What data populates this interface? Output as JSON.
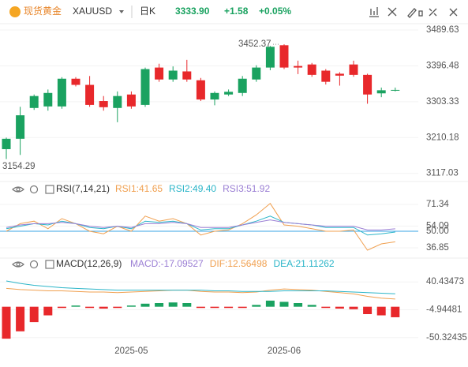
{
  "header": {
    "name": "现货黄金",
    "symbol": "XAUUSD",
    "period": "日K",
    "price": "3333.90",
    "change": "+1.58",
    "change_pct": "+0.05%"
  },
  "chart_data": [
    {
      "type": "candlestick",
      "up_color": "#1aa260",
      "down_color": "#e8282b",
      "categories": [
        null,
        null,
        null,
        null,
        null,
        null,
        null,
        null,
        null,
        "2025-05",
        null,
        null,
        null,
        null,
        null,
        null,
        null,
        null,
        null,
        null,
        "2025-06",
        null,
        null,
        null,
        null,
        null,
        null,
        null,
        null
      ],
      "open": [
        3180,
        3207,
        3287,
        3291,
        3291,
        3363,
        3347,
        3305,
        3287,
        3322,
        3295,
        3392,
        3361,
        3382,
        3359,
        3309,
        3322,
        3326,
        3361,
        3392,
        3450,
        3396,
        3400,
        3384,
        3376,
        3400,
        3373,
        3325,
        3333
      ],
      "high": [
        3210,
        3290,
        3322,
        3335,
        3367,
        3367,
        3370,
        3318,
        3330,
        3330,
        3392,
        3402,
        3395,
        3412,
        3365,
        3330,
        3335,
        3370,
        3398,
        3448,
        3452.37,
        3410,
        3404,
        3388,
        3380,
        3410,
        3376,
        3340,
        3340
      ],
      "low": [
        3154.29,
        3165,
        3282,
        3280,
        3285,
        3343,
        3290,
        3280,
        3250,
        3285,
        3290,
        3355,
        3355,
        3355,
        3305,
        3294,
        3318,
        3318,
        3355,
        3385,
        3388,
        3375,
        3368,
        3348,
        3345,
        3368,
        3298,
        3315,
        3330
      ],
      "close": [
        3207,
        3268,
        3318,
        3326,
        3363,
        3347,
        3295,
        3289,
        3318,
        3291,
        3388,
        3361,
        3384,
        3361,
        3309,
        3326,
        3329,
        3363,
        3392,
        3446,
        3392,
        3392,
        3373,
        3355,
        3371,
        3373,
        3322,
        3333,
        3333.9
      ],
      "ylim": [
        3100,
        3506
      ],
      "yticks": [
        3489.63,
        3396.48,
        3303.33,
        3210.18,
        3117.03
      ],
      "annotations": [
        {
          "index": 20,
          "field": "high"
        },
        {
          "index": 0,
          "field": "low"
        }
      ]
    },
    {
      "type": "line",
      "title": "RSI(7,14,21)",
      "ylim": [
        30,
        80
      ],
      "yticks": [
        71.34,
        54.09,
        {
          "value": 50,
          "label": "50.00"
        },
        36.85
      ],
      "ref_line": {
        "value": 50,
        "color": "#3aa6e6"
      },
      "series": [
        {
          "name": "RSI1:41.65",
          "color": "#f0a050",
          "values": [
            50,
            56,
            58,
            52,
            60,
            56,
            50,
            48,
            54,
            50,
            62,
            58,
            60,
            56,
            47,
            50,
            51,
            56,
            63,
            72,
            55,
            54,
            52,
            50,
            50,
            51,
            35,
            40,
            41.65
          ]
        },
        {
          "name": "RSI2:49.40",
          "color": "#2bb5c8",
          "values": [
            52,
            54,
            56,
            55,
            58,
            56,
            53,
            52,
            54,
            52,
            58,
            57,
            58,
            56,
            51,
            52,
            52,
            55,
            58,
            62,
            57,
            56,
            55,
            53,
            53,
            53,
            47,
            48,
            49.4
          ]
        },
        {
          "name": "RSI3:51.92",
          "color": "#9b7fd4",
          "values": [
            53,
            55,
            56,
            56,
            57,
            56,
            54,
            53,
            54,
            53,
            56,
            56,
            57,
            56,
            53,
            53,
            53,
            55,
            57,
            59,
            57,
            56,
            55,
            54,
            54,
            54,
            51,
            51,
            51.92
          ]
        }
      ]
    },
    {
      "type": "macd",
      "title": "MACD(12,26,9)",
      "ylim": [
        -66,
        60
      ],
      "yticks": [
        40.43473,
        -4.94481,
        -50.32435
      ],
      "series": [
        {
          "name": "MACD:-17.09527",
          "color": "#9b7fd4",
          "up_color": "#1aa260",
          "down_color": "#e8282b",
          "kind": "bar",
          "values": [
            -52,
            -40,
            -25,
            -14,
            -2,
            2,
            -2,
            -3,
            -2,
            2,
            5,
            6,
            7,
            6,
            -2,
            -2,
            -2,
            -2,
            3,
            10,
            8,
            6,
            3,
            -2,
            -3,
            -4,
            -12,
            -14,
            -17.09527
          ]
        },
        {
          "name": "DIF:12.56498",
          "color": "#f0a050",
          "kind": "line",
          "values": [
            30,
            28,
            27,
            26,
            26,
            25,
            24,
            24,
            23,
            24,
            25,
            26,
            27,
            27,
            25,
            24,
            24,
            23,
            24,
            27,
            29,
            28,
            27,
            25,
            23,
            21,
            17,
            14,
            12.56498
          ]
        },
        {
          "name": "DEA:21.11262",
          "color": "#2bb5c8",
          "kind": "line",
          "values": [
            42,
            38,
            35,
            33,
            31,
            30,
            29,
            28,
            27,
            27,
            27,
            27,
            27,
            27,
            27,
            26,
            26,
            25,
            25,
            25,
            26,
            26,
            26,
            26,
            25,
            24,
            23,
            22,
            21.11262
          ]
        }
      ]
    }
  ]
}
